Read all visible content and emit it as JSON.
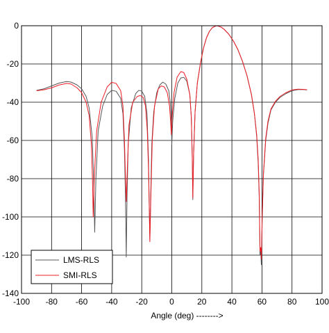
{
  "chart_data": {
    "type": "line",
    "title": "",
    "xlabel": "Angle (deg) -------->",
    "ylabel": "",
    "xlim": [
      -100,
      100
    ],
    "ylim": [
      -140,
      0
    ],
    "x_ticks": [
      -100,
      -80,
      -60,
      -40,
      -20,
      0,
      20,
      40,
      60,
      80,
      100
    ],
    "y_ticks": [
      0,
      -20,
      -40,
      -60,
      -80,
      -100,
      -120,
      -140
    ],
    "grid": true,
    "legend_position": "bottom-left",
    "series": [
      {
        "name": "LMS-RLS",
        "color": "#555555",
        "points": [
          [
            -90,
            -33.8
          ],
          [
            -85,
            -33.0
          ],
          [
            -80,
            -31.5
          ],
          [
            -75,
            -30.0
          ],
          [
            -70,
            -29.2
          ],
          [
            -67,
            -29.5
          ],
          [
            -63,
            -31.0
          ],
          [
            -60,
            -33.0
          ],
          [
            -57,
            -37.0
          ],
          [
            -55,
            -43.0
          ],
          [
            -53,
            -58.0
          ],
          [
            -52,
            -80.0
          ],
          [
            -51.3,
            -108.0
          ],
          [
            -50.5,
            -80.0
          ],
          [
            -49,
            -55.0
          ],
          [
            -46,
            -42.0
          ],
          [
            -43,
            -36.0
          ],
          [
            -40,
            -33.8
          ],
          [
            -37,
            -34.3
          ],
          [
            -34,
            -38.0
          ],
          [
            -32.5,
            -46.0
          ],
          [
            -31.5,
            -65.0
          ],
          [
            -30.8,
            -90.0
          ],
          [
            -30.3,
            -121.0
          ],
          [
            -29.8,
            -90.0
          ],
          [
            -29,
            -62.0
          ],
          [
            -27,
            -43.0
          ],
          [
            -24,
            -35.5
          ],
          [
            -22,
            -33.8
          ],
          [
            -20,
            -34.2
          ],
          [
            -18,
            -37.0
          ],
          [
            -16.5,
            -46.0
          ],
          [
            -15.5,
            -70.0
          ],
          [
            -15,
            -95.0
          ],
          [
            -14.6,
            -112.0
          ],
          [
            -14.1,
            -92.0
          ],
          [
            -13.3,
            -62.0
          ],
          [
            -12,
            -45.0
          ],
          [
            -10,
            -35.0
          ],
          [
            -8,
            -31.0
          ],
          [
            -6,
            -29.5
          ],
          [
            -4,
            -30.5
          ],
          [
            -2,
            -34.0
          ],
          [
            -1,
            -40.0
          ],
          [
            -0.3,
            -50.0
          ],
          [
            0,
            -62.0
          ],
          [
            0.6,
            -50.0
          ],
          [
            2,
            -38.0
          ],
          [
            4,
            -30.0
          ],
          [
            6,
            -27.3
          ],
          [
            8,
            -27.0
          ],
          [
            10,
            -29.0
          ],
          [
            12,
            -36.0
          ],
          [
            13,
            -48.0
          ],
          [
            13.6,
            -68.0
          ],
          [
            14,
            -91.0
          ],
          [
            14.5,
            -68.0
          ],
          [
            15.5,
            -45.0
          ],
          [
            17,
            -30.0
          ],
          [
            19,
            -20.0
          ],
          [
            21,
            -12.0
          ],
          [
            23,
            -6.5
          ],
          [
            25,
            -3.0
          ],
          [
            27,
            -1.0
          ],
          [
            29,
            -0.2
          ],
          [
            30,
            0.0
          ],
          [
            31,
            -0.2
          ],
          [
            33,
            -0.8
          ],
          [
            35,
            -2.0
          ],
          [
            38,
            -4.5
          ],
          [
            41,
            -8.0
          ],
          [
            44,
            -12.5
          ],
          [
            47,
            -18.5
          ],
          [
            50,
            -26.0
          ],
          [
            53,
            -36.0
          ],
          [
            55,
            -46.0
          ],
          [
            56.5,
            -58.0
          ],
          [
            57.5,
            -72.0
          ],
          [
            58.2,
            -90.0
          ],
          [
            58.7,
            -120.0
          ],
          [
            59.2,
            -118.0
          ],
          [
            59.6,
            -125.0
          ],
          [
            60.2,
            -100.0
          ],
          [
            61,
            -78.0
          ],
          [
            62.5,
            -60.0
          ],
          [
            64,
            -51.0
          ],
          [
            66,
            -44.0
          ],
          [
            69,
            -40.0
          ],
          [
            72,
            -37.5
          ],
          [
            76,
            -35.5
          ],
          [
            80,
            -34.0
          ],
          [
            84,
            -33.4
          ],
          [
            88,
            -33.4
          ],
          [
            90,
            -33.6
          ]
        ]
      },
      {
        "name": "SMI-RLS",
        "color": "#ee1c25",
        "points": [
          [
            -90,
            -34.0
          ],
          [
            -85,
            -33.5
          ],
          [
            -80,
            -32.5
          ],
          [
            -75,
            -31.0
          ],
          [
            -70,
            -30.2
          ],
          [
            -67,
            -30.5
          ],
          [
            -63,
            -32.5
          ],
          [
            -60,
            -35.0
          ],
          [
            -57,
            -40.0
          ],
          [
            -55,
            -47.0
          ],
          [
            -53.5,
            -62.0
          ],
          [
            -52.8,
            -80.0
          ],
          [
            -52.3,
            -100.0
          ],
          [
            -51.6,
            -80.0
          ],
          [
            -50,
            -55.0
          ],
          [
            -47,
            -40.0
          ],
          [
            -43,
            -32.0
          ],
          [
            -40,
            -29.6
          ],
          [
            -37,
            -30.2
          ],
          [
            -34,
            -34.0
          ],
          [
            -32.5,
            -42.0
          ],
          [
            -31.5,
            -60.0
          ],
          [
            -30.8,
            -80.0
          ],
          [
            -30.3,
            -92.0
          ],
          [
            -29.6,
            -75.0
          ],
          [
            -28.5,
            -52.0
          ],
          [
            -26,
            -40.0
          ],
          [
            -23,
            -37.0
          ],
          [
            -21,
            -36.5
          ],
          [
            -19,
            -37.5
          ],
          [
            -17.5,
            -42.0
          ],
          [
            -16.3,
            -55.0
          ],
          [
            -15.5,
            -75.0
          ],
          [
            -15,
            -95.0
          ],
          [
            -14.6,
            -113.0
          ],
          [
            -14,
            -92.0
          ],
          [
            -13,
            -60.0
          ],
          [
            -11.5,
            -42.0
          ],
          [
            -9,
            -33.0
          ],
          [
            -7,
            -31.5
          ],
          [
            -5,
            -32.0
          ],
          [
            -3,
            -35.0
          ],
          [
            -1.5,
            -42.0
          ],
          [
            -0.8,
            -50.0
          ],
          [
            -0.3,
            -57.0
          ],
          [
            0.2,
            -48.0
          ],
          [
            1.5,
            -35.0
          ],
          [
            3.5,
            -27.0
          ],
          [
            6,
            -24.0
          ],
          [
            8,
            -24.5
          ],
          [
            10,
            -28.0
          ],
          [
            12,
            -36.0
          ],
          [
            13,
            -48.0
          ],
          [
            13.6,
            -68.0
          ],
          [
            14,
            -90.0
          ],
          [
            14.5,
            -68.0
          ],
          [
            15.5,
            -45.0
          ],
          [
            17,
            -30.0
          ],
          [
            19,
            -20.0
          ],
          [
            21,
            -12.0
          ],
          [
            23,
            -6.5
          ],
          [
            25,
            -3.0
          ],
          [
            27,
            -1.0
          ],
          [
            29,
            -0.2
          ],
          [
            30,
            0.0
          ],
          [
            31,
            -0.2
          ],
          [
            33,
            -0.8
          ],
          [
            35,
            -2.0
          ],
          [
            38,
            -4.5
          ],
          [
            41,
            -8.0
          ],
          [
            44,
            -12.5
          ],
          [
            47,
            -18.5
          ],
          [
            50,
            -26.0
          ],
          [
            53,
            -36.0
          ],
          [
            55,
            -46.0
          ],
          [
            56.5,
            -57.0
          ],
          [
            57.5,
            -70.0
          ],
          [
            58.2,
            -88.0
          ],
          [
            58.7,
            -118.0
          ],
          [
            59.2,
            -116.0
          ],
          [
            59.6,
            -122.0
          ],
          [
            60.2,
            -98.0
          ],
          [
            61,
            -77.0
          ],
          [
            62.5,
            -59.0
          ],
          [
            64,
            -50.0
          ],
          [
            66,
            -43.5
          ],
          [
            69,
            -39.5
          ],
          [
            72,
            -37.0
          ],
          [
            76,
            -35.0
          ],
          [
            80,
            -33.6
          ],
          [
            84,
            -33.2
          ],
          [
            88,
            -33.3
          ],
          [
            90,
            -33.5
          ]
        ]
      }
    ]
  }
}
